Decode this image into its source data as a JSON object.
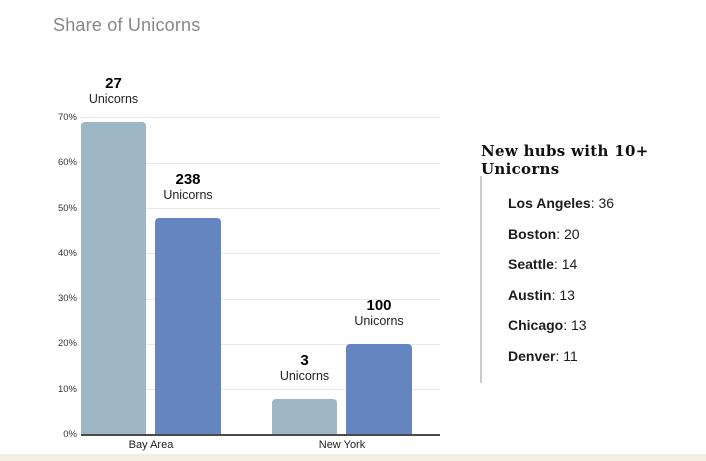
{
  "title": "Share of Unicorns",
  "chart_data": {
    "type": "bar",
    "title": "Share of Unicorns",
    "xlabel": "",
    "ylabel": "",
    "categories": [
      "Bay Area",
      "New York"
    ],
    "series": [
      {
        "name": "light",
        "color": "#9fb6c5",
        "values": [
          69,
          8
        ],
        "counts": [
          27,
          3
        ]
      },
      {
        "name": "dark",
        "color": "#6585c1",
        "values": [
          48,
          20
        ],
        "counts": [
          238,
          100
        ]
      }
    ],
    "count_unit": "Unicorns",
    "ylim": [
      0,
      70
    ],
    "ytick_labels": [
      "0%",
      "10%",
      "20%",
      "30%",
      "40%",
      "50%",
      "60%",
      "70%"
    ],
    "grid": true,
    "legend": false
  },
  "panel": {
    "title": "New hubs with 10+ Unicorns",
    "items": [
      {
        "city": "Los Angeles",
        "value": "36"
      },
      {
        "city": "Boston",
        "value": "20"
      },
      {
        "city": "Seattle",
        "value": "14"
      },
      {
        "city": "Austin",
        "value": "13"
      },
      {
        "city": "Chicago",
        "value": "13"
      },
      {
        "city": "Denver",
        "value": "11"
      }
    ]
  },
  "colors": {
    "bar_light": "#9fb6c5",
    "bar_dark": "#6585c1",
    "gridline": "#e8e8e8",
    "axis": "#4a4a4a",
    "title_gray": "#878787",
    "footer_strip": "#f2eee1"
  }
}
